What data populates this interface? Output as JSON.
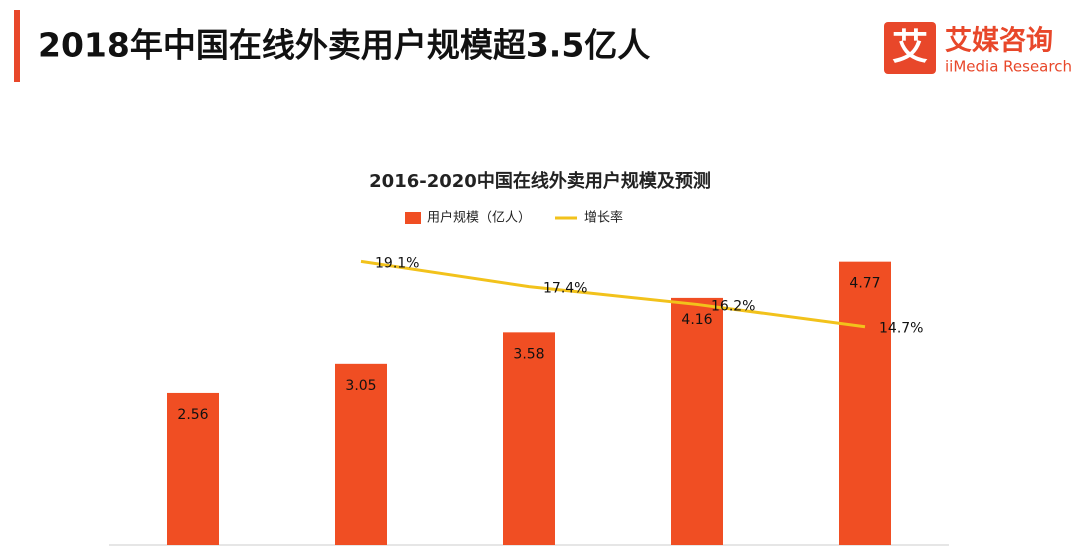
{
  "header": {
    "title": "2018年中国在线外卖用户规模超3.5亿人",
    "logo_mark": "艾",
    "logo_name": "艾媒咨询",
    "logo_sub": "iiMedia Research"
  },
  "chart_data": {
    "type": "bar",
    "title": "2016-2020中国在线外卖用户规模及预测",
    "categories": [
      null,
      null,
      null,
      null,
      null
    ],
    "series": [
      {
        "name": "用户规模（亿人）",
        "type": "bar",
        "color": "#f04e23",
        "values": [
          2.56,
          3.05,
          3.58,
          4.16,
          4.77
        ]
      },
      {
        "name": "增长率",
        "type": "line",
        "axis": "y2",
        "color": "#f2c21b",
        "values": [
          null,
          19.1,
          17.4,
          16.2,
          14.7
        ],
        "value_labels": [
          null,
          "19.1%",
          "17.4%",
          "16.2%",
          "14.7%"
        ]
      }
    ],
    "ylim": [
      0,
      5
    ],
    "y2lim": [
      0,
      20
    ],
    "legend": "top"
  }
}
